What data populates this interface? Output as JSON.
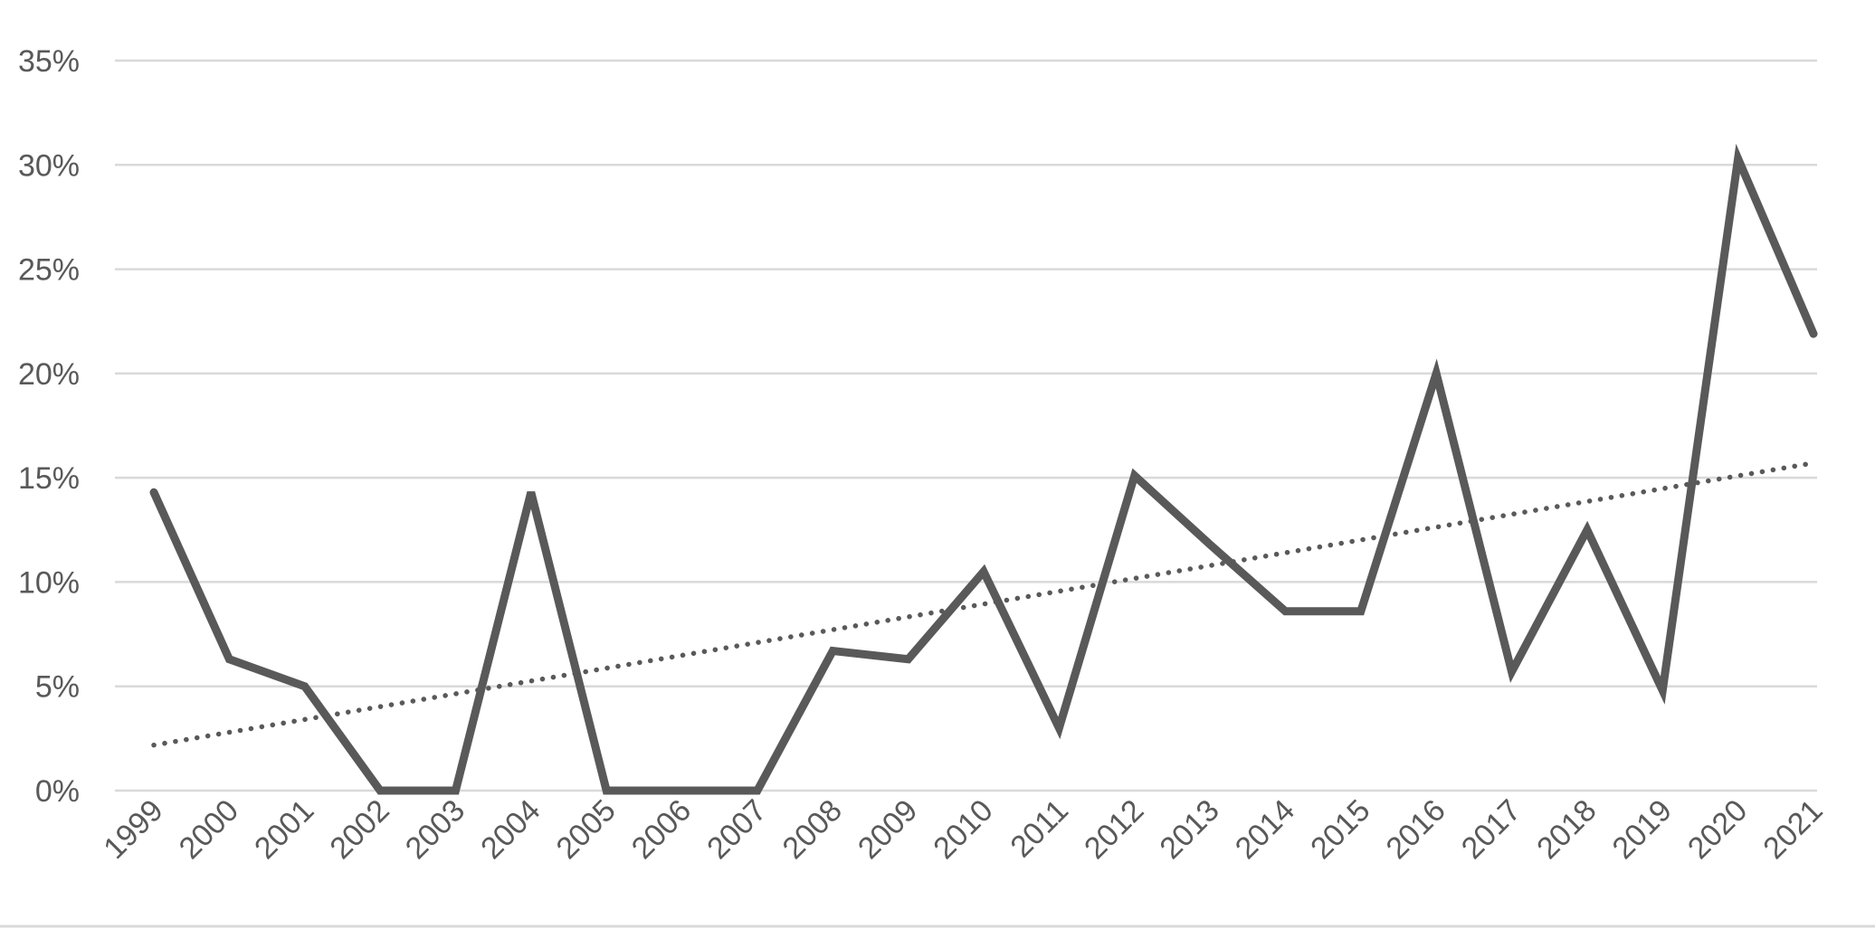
{
  "chart_data": {
    "type": "line",
    "title": "",
    "xlabel": "",
    "ylabel": "",
    "categories": [
      "1999",
      "2000",
      "2001",
      "2002",
      "2003",
      "2004",
      "2005",
      "2006",
      "2007",
      "2008",
      "2009",
      "2010",
      "2011",
      "2012",
      "2013",
      "2014",
      "2015",
      "2016",
      "2017",
      "2018",
      "2019",
      "2020",
      "2021"
    ],
    "series": [
      {
        "values": [
          14.3,
          6.3,
          5.0,
          0,
          0,
          14.3,
          0,
          0,
          0,
          6.7,
          6.3,
          10.5,
          3.0,
          15.1,
          11.8,
          8.6,
          8.6,
          20.0,
          5.7,
          12.5,
          4.8,
          30.3,
          21.9
        ],
        "color": "#595959"
      }
    ],
    "trendline": {
      "type": "linear",
      "style": "dotted",
      "color": "#595959"
    },
    "ylim": [
      0,
      35
    ],
    "yticks": [
      0,
      5,
      10,
      15,
      20,
      25,
      30,
      35
    ],
    "ytick_format": "percent",
    "grid": true,
    "legend": "none"
  }
}
